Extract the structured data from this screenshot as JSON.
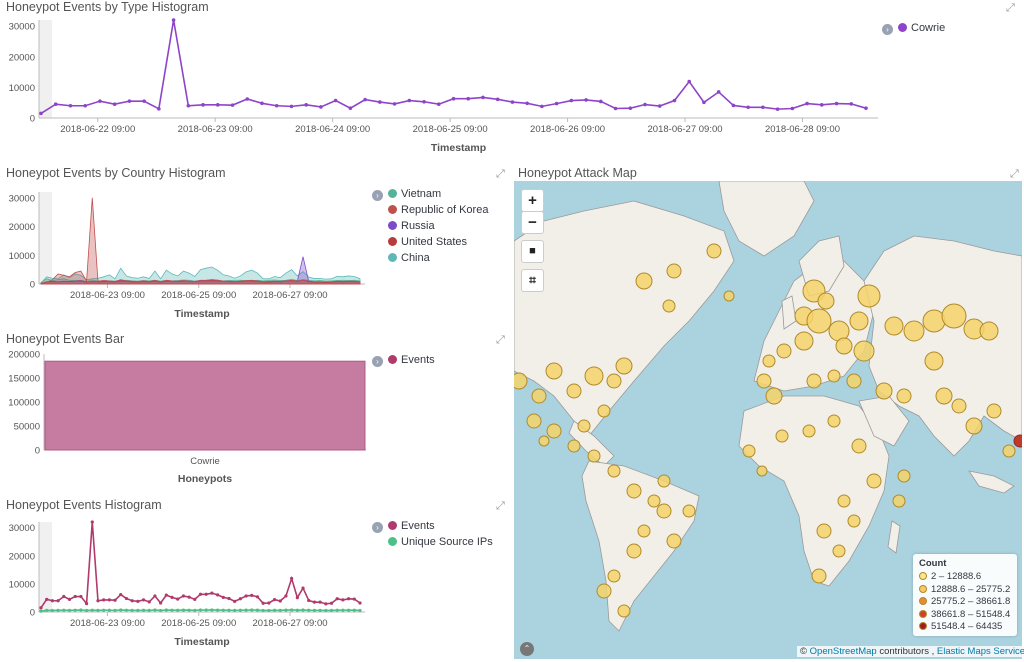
{
  "panels": {
    "type_histogram": {
      "title": "Honeypot Events by Type Histogram",
      "legend": [
        {
          "label": "Cowrie",
          "color": "#8e44c8"
        }
      ]
    },
    "country_histogram": {
      "title": "Honeypot Events by Country Histogram",
      "legend": [
        {
          "label": "Vietnam",
          "color": "#54b399"
        },
        {
          "label": "Republic of Korea",
          "color": "#c0504d"
        },
        {
          "label": "Russia",
          "color": "#7e4bc8"
        },
        {
          "label": "United States",
          "color": "#b83b3b"
        },
        {
          "label": "China",
          "color": "#5fb8b8"
        }
      ]
    },
    "events_bar": {
      "title": "Honeypot Events Bar",
      "legend": [
        {
          "label": "Events",
          "color": "#b03a6c"
        }
      ]
    },
    "events_histogram": {
      "title": "Honeypot Events Histogram",
      "legend": [
        {
          "label": "Events",
          "color": "#b03a6c"
        },
        {
          "label": "Unique Source IPs",
          "color": "#4dbf8a"
        }
      ]
    },
    "attack_map": {
      "title": "Honeypot Attack Map",
      "controls": {
        "zoom_in": "+",
        "zoom_out": "−",
        "draw": "■",
        "crop": "⌗"
      },
      "legend_title": "Count",
      "legend": [
        {
          "label": "2 – 12888.6",
          "color": "#fde68a"
        },
        {
          "label": "12888.6 – 25775.2",
          "color": "#f8c866"
        },
        {
          "label": "25775.2 – 38661.8",
          "color": "#e9883a"
        },
        {
          "label": "38661.8 – 51548.4",
          "color": "#d0402a"
        },
        {
          "label": "51548.4 – 64435",
          "color": "#a31d1d"
        }
      ],
      "attribution_prefix": "©",
      "attribution_osm": "OpenStreetMap",
      "attribution_mid": "contributors ,",
      "attribution_ems": "Elastic Maps Service"
    }
  },
  "chart_data": [
    {
      "id": "type_histogram",
      "type": "line",
      "xlabel": "Timestamp",
      "ylabel": "",
      "ylim": [
        0,
        32000
      ],
      "y_ticks": [
        "0",
        "10000",
        "20000",
        "30000"
      ],
      "x_ticks": [
        "2018-06-22 09:00",
        "2018-06-23 09:00",
        "2018-06-24 09:00",
        "2018-06-25 09:00",
        "2018-06-26 09:00",
        "2018-06-27 09:00",
        "2018-06-28 09:00"
      ],
      "series": [
        {
          "name": "Cowrie",
          "color": "#8e44c8",
          "values": [
            1500,
            4500,
            4000,
            4000,
            5500,
            4500,
            5500,
            5500,
            3000,
            32000,
            4000,
            4300,
            4300,
            4200,
            6200,
            4800,
            4000,
            3800,
            4300,
            3600,
            5700,
            3200,
            6000,
            5200,
            4600,
            5700,
            5300,
            4500,
            6300,
            6300,
            6700,
            6100,
            5200,
            4800,
            3800,
            4700,
            5700,
            5900,
            5400,
            3100,
            3200,
            4400,
            3900,
            5700,
            11900,
            5100,
            8500,
            4100,
            3500,
            3500,
            2900,
            3100,
            4700,
            4300,
            4700,
            4600,
            3200
          ]
        }
      ]
    },
    {
      "id": "country_histogram",
      "type": "area",
      "xlabel": "Timestamp",
      "ylabel": "",
      "ylim": [
        0,
        32000
      ],
      "y_ticks": [
        "0",
        "10000",
        "20000",
        "30000"
      ],
      "x_ticks": [
        "2018-06-23 09:00",
        "2018-06-25 09:00",
        "2018-06-27 09:00"
      ],
      "series": [
        {
          "name": "Vietnam",
          "color": "#54b399",
          "values": [
            500,
            1800,
            1200,
            1500,
            1800,
            1300,
            1200,
            1300,
            900,
            1400,
            1000,
            1200,
            1100,
            1000,
            1200,
            1300,
            1100,
            1000,
            1200,
            1100,
            1300,
            1000,
            1300,
            1100,
            1200,
            1400,
            1300,
            1000,
            1200,
            1300,
            1500,
            1400,
            1100,
            1200,
            1300,
            1300,
            1200,
            1100,
            1300,
            1100,
            1300,
            1400,
            1200,
            1300,
            1600,
            1200,
            1500,
            1300,
            1100,
            1200,
            1000,
            1100,
            1200,
            1300,
            1200,
            1300,
            1100
          ]
        },
        {
          "name": "Republic of Korea",
          "color": "#c0504d",
          "values": [
            300,
            600,
            1500,
            3500,
            3000,
            2500,
            4000,
            4500,
            1000,
            30000,
            1000,
            1200,
            1100,
            900,
            1500,
            1100,
            1000,
            900,
            1100,
            900,
            1300,
            800,
            1300,
            1100,
            1000,
            1200,
            1000,
            900,
            1300,
            1300,
            1500,
            1300,
            1000,
            1000,
            800,
            1000,
            1200,
            1300,
            1100,
            800,
            900,
            1000,
            900,
            1100,
            1300,
            1000,
            1400,
            1000,
            800,
            800,
            700,
            800,
            1000,
            900,
            1000,
            1000,
            800
          ]
        },
        {
          "name": "Russia",
          "color": "#7e4bc8",
          "values": [
            200,
            800,
            900,
            800,
            1000,
            900,
            1000,
            1200,
            700,
            900,
            800,
            900,
            900,
            800,
            1200,
            1000,
            800,
            800,
            900,
            800,
            1200,
            700,
            1200,
            1000,
            900,
            1100,
            1000,
            900,
            1200,
            1200,
            1300,
            1200,
            1000,
            900,
            800,
            900,
            1100,
            1200,
            1000,
            700,
            700,
            900,
            800,
            1100,
            1300,
            1000,
            9500,
            900,
            700,
            700,
            600,
            700,
            900,
            800,
            900,
            900,
            700
          ]
        },
        {
          "name": "United States",
          "color": "#b83b3b",
          "values": [
            200,
            700,
            800,
            700,
            900,
            800,
            900,
            1000,
            600,
            800,
            700,
            800,
            800,
            700,
            1000,
            900,
            700,
            700,
            800,
            700,
            1000,
            600,
            1000,
            900,
            800,
            1000,
            900,
            800,
            1000,
            1000,
            1100,
            1000,
            900,
            800,
            700,
            800,
            1000,
            1000,
            900,
            600,
            600,
            800,
            700,
            1000,
            1100,
            900,
            1300,
            800,
            600,
            600,
            500,
            600,
            800,
            700,
            800,
            800,
            600
          ]
        },
        {
          "name": "China",
          "color": "#5fb8b8",
          "values": [
            400,
            2500,
            2000,
            1800,
            3200,
            2200,
            3500,
            3000,
            1500,
            1800,
            2000,
            2500,
            3200,
            1800,
            5500,
            2800,
            2200,
            2000,
            2500,
            1900,
            4500,
            1800,
            4800,
            3500,
            2800,
            4500,
            3800,
            2600,
            5000,
            5500,
            5900,
            4800,
            3200,
            2800,
            2000,
            2800,
            4200,
            4800,
            3800,
            1800,
            1800,
            2600,
            2200,
            3800,
            5000,
            2800,
            4300,
            2400,
            1900,
            1900,
            1700,
            1800,
            2700,
            2500,
            2800,
            2600,
            1800
          ]
        }
      ]
    },
    {
      "id": "events_bar",
      "type": "bar",
      "categories": [
        "Cowrie"
      ],
      "xlabel": "Honeypots",
      "ylabel": "",
      "ylim": [
        0,
        200000
      ],
      "y_ticks": [
        "0",
        "50000",
        "100000",
        "150000",
        "200000"
      ],
      "series": [
        {
          "name": "Events",
          "color": "#c67ba0",
          "values": [
            185000
          ]
        }
      ]
    },
    {
      "id": "events_histogram",
      "type": "line",
      "xlabel": "Timestamp",
      "ylabel": "",
      "ylim": [
        0,
        32000
      ],
      "y_ticks": [
        "0",
        "10000",
        "20000",
        "30000"
      ],
      "x_ticks": [
        "2018-06-23 09:00",
        "2018-06-25 09:00",
        "2018-06-27 09:00"
      ],
      "series": [
        {
          "name": "Events",
          "color": "#b03a6c",
          "values": [
            1500,
            4500,
            4000,
            4000,
            5500,
            4500,
            5500,
            5500,
            3000,
            32000,
            4000,
            4300,
            4300,
            4200,
            6200,
            4800,
            4000,
            3800,
            4300,
            3600,
            5700,
            3200,
            6000,
            5200,
            4600,
            5700,
            5300,
            4500,
            6300,
            6300,
            6700,
            6100,
            5200,
            4800,
            3800,
            4700,
            5700,
            5900,
            5400,
            3100,
            3200,
            4400,
            3900,
            5700,
            11900,
            5100,
            8500,
            4100,
            3500,
            3500,
            2900,
            3100,
            4700,
            4300,
            4700,
            4600,
            3200
          ]
        },
        {
          "name": "Unique Source IPs",
          "color": "#4dbf8a",
          "values": [
            300,
            600,
            550,
            600,
            650,
            600,
            650,
            700,
            550,
            650,
            600,
            650,
            620,
            600,
            700,
            650,
            600,
            580,
            620,
            580,
            700,
            560,
            700,
            650,
            620,
            680,
            650,
            600,
            700,
            700,
            720,
            680,
            650,
            620,
            580,
            620,
            680,
            700,
            660,
            560,
            560,
            620,
            600,
            680,
            720,
            640,
            700,
            620,
            580,
            580,
            560,
            570,
            640,
            620,
            640,
            630,
            560
          ]
        }
      ]
    }
  ]
}
